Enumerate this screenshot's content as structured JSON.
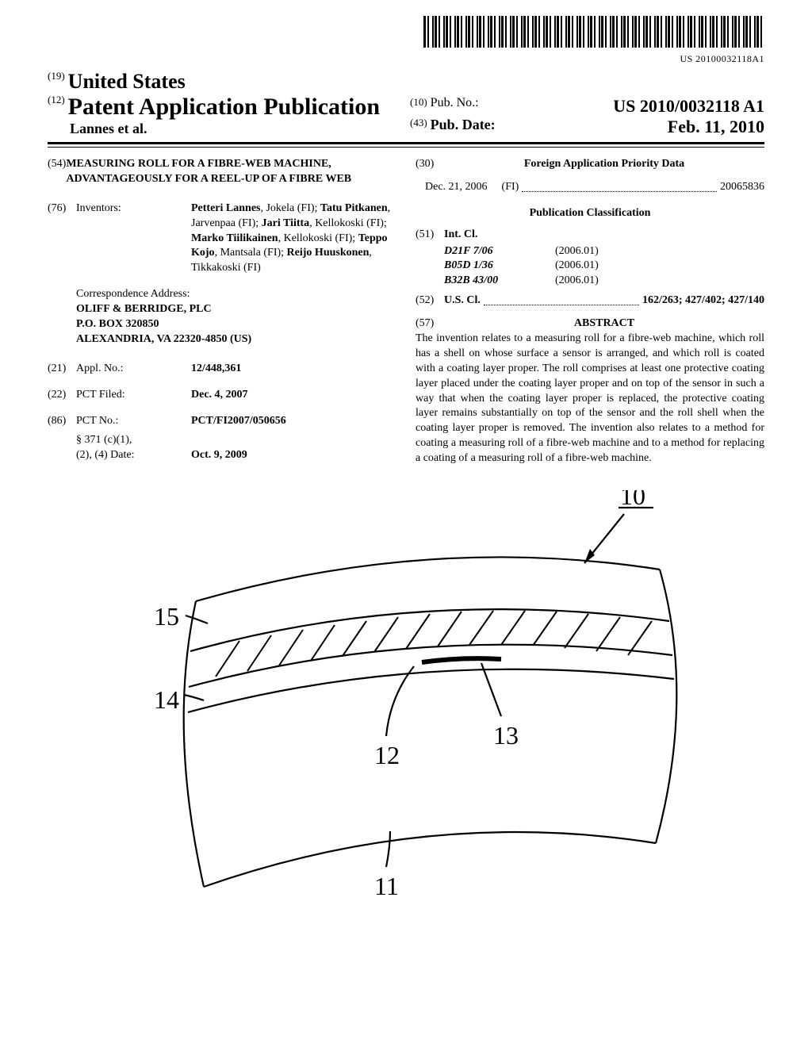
{
  "barcode_text": "US 20100032118A1",
  "header": {
    "country_num": "(19)",
    "country": "United States",
    "pub_type_num": "(12)",
    "pub_type": "Patent Application Publication",
    "authors": "Lannes et al.",
    "pubno_num": "(10)",
    "pubno_label": "Pub. No.:",
    "pubno": "US 2010/0032118 A1",
    "pubdate_num": "(43)",
    "pubdate_label": "Pub. Date:",
    "pubdate": "Feb. 11, 2010"
  },
  "left": {
    "title_num": "(54)",
    "title": "MEASURING ROLL FOR A FIBRE-WEB MACHINE, ADVANTAGEOUSLY FOR A REEL-UP OF A FIBRE WEB",
    "inventors_num": "(76)",
    "inventors_label": "Inventors:",
    "inventors": "Petteri Lannes, Jokela (FI); Tatu Pitkanen, Jarvenpaa (FI); Jari Tiitta, Kellokoski (FI); Marko Tiilikainen, Kellokoski (FI); Teppo Kojo, Mantsala (FI); Reijo Huuskonen, Tikkakoski (FI)",
    "correspondence_label": "Correspondence Address:",
    "correspondence": "OLIFF & BERRIDGE, PLC\nP.O. BOX 320850\nALEXANDRIA, VA 22320-4850 (US)",
    "applno_num": "(21)",
    "applno_label": "Appl. No.:",
    "applno": "12/448,361",
    "pctfiled_num": "(22)",
    "pctfiled_label": "PCT Filed:",
    "pctfiled": "Dec. 4, 2007",
    "pctno_num": "(86)",
    "pctno_label": "PCT No.:",
    "pctno": "PCT/FI2007/050656",
    "s371_label": "§ 371 (c)(1),\n(2), (4) Date:",
    "s371_date": "Oct. 9, 2009"
  },
  "right": {
    "foreign_num": "(30)",
    "foreign_heading": "Foreign Application Priority Data",
    "foreign_date": "Dec. 21, 2006",
    "foreign_cc": "(FI)",
    "foreign_app": "20065836",
    "pubclass_heading": "Publication Classification",
    "intcl_num": "(51)",
    "intcl_label": "Int. Cl.",
    "intcl": [
      {
        "code": "D21F 7/06",
        "year": "(2006.01)"
      },
      {
        "code": "B05D 1/36",
        "year": "(2006.01)"
      },
      {
        "code": "B32B 43/00",
        "year": "(2006.01)"
      }
    ],
    "uscl_num": "(52)",
    "uscl_label": "U.S. Cl.",
    "uscl": "162/263; 427/402; 427/140",
    "abstract_num": "(57)",
    "abstract_heading": "ABSTRACT",
    "abstract": "The invention relates to a measuring roll for a fibre-web machine, which roll has a shell on whose surface a sensor is arranged, and which roll is coated with a coating layer proper. The roll comprises at least one protective coating layer placed under the coating layer proper and on top of the sensor in such a way that when the coating layer proper is replaced, the protective coating layer remains substantially on top of the sensor and the roll shell when the coating layer proper is removed. The invention also relates to a method for coating a measuring roll of a fibre-web machine and to a method for replacing a coating of a measuring roll of a fibre-web machine."
  },
  "figure": {
    "labels": {
      "ref10": "10",
      "ref11": "11",
      "ref12": "12",
      "ref13": "13",
      "ref14": "14",
      "ref15": "15"
    }
  }
}
